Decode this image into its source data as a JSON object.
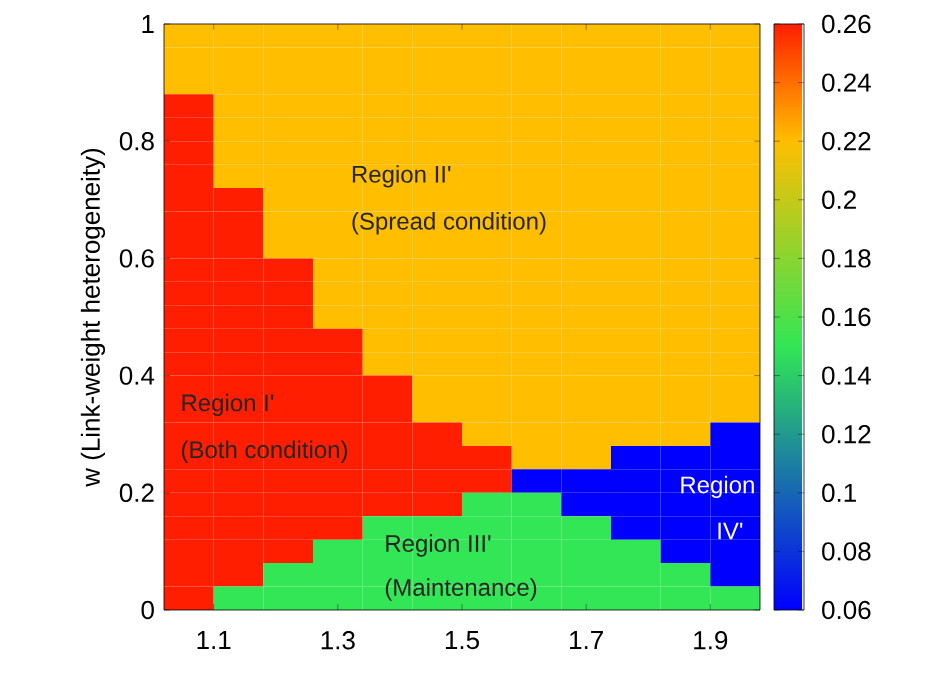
{
  "chart_data": {
    "type": "heatmap",
    "ylabel": "w (Link-weight heterogeneity)",
    "xlim": [
      1.02,
      1.98
    ],
    "ylim": [
      0,
      1
    ],
    "xticks": [
      1.1,
      1.3,
      1.5,
      1.7,
      1.9
    ],
    "yticks": [
      0,
      0.2,
      0.4,
      0.6,
      0.8,
      1
    ],
    "clim": [
      0.06,
      0.26
    ],
    "cticks": [
      0.06,
      0.08,
      0.1,
      0.12,
      0.14,
      0.16,
      0.18,
      0.2,
      0.22,
      0.24,
      0.26
    ],
    "cells": [
      [
        0.22,
        0.22,
        0.22,
        0.22,
        0.22,
        0.22,
        0.22,
        0.22,
        0.22,
        0.22,
        0.22,
        0.22
      ],
      [
        0.22,
        0.22,
        0.22,
        0.22,
        0.22,
        0.22,
        0.22,
        0.22,
        0.22,
        0.22,
        0.22,
        0.22
      ],
      [
        0.22,
        0.22,
        0.22,
        0.22,
        0.22,
        0.22,
        0.22,
        0.22,
        0.22,
        0.22,
        0.22,
        0.22
      ],
      [
        0.26,
        0.22,
        0.22,
        0.22,
        0.22,
        0.22,
        0.22,
        0.22,
        0.22,
        0.22,
        0.22,
        0.22
      ],
      [
        0.26,
        0.22,
        0.22,
        0.22,
        0.22,
        0.22,
        0.22,
        0.22,
        0.22,
        0.22,
        0.22,
        0.22
      ],
      [
        0.26,
        0.22,
        0.22,
        0.22,
        0.22,
        0.22,
        0.22,
        0.22,
        0.22,
        0.22,
        0.22,
        0.22
      ],
      [
        0.26,
        0.22,
        0.22,
        0.22,
        0.22,
        0.22,
        0.22,
        0.22,
        0.22,
        0.22,
        0.22,
        0.22
      ],
      [
        0.26,
        0.26,
        0.22,
        0.22,
        0.22,
        0.22,
        0.22,
        0.22,
        0.22,
        0.22,
        0.22,
        0.22
      ],
      [
        0.26,
        0.26,
        0.22,
        0.22,
        0.22,
        0.22,
        0.22,
        0.22,
        0.22,
        0.22,
        0.22,
        0.22
      ],
      [
        0.26,
        0.26,
        0.22,
        0.22,
        0.22,
        0.22,
        0.22,
        0.22,
        0.22,
        0.22,
        0.22,
        0.22
      ],
      [
        0.26,
        0.26,
        0.26,
        0.22,
        0.22,
        0.22,
        0.22,
        0.22,
        0.22,
        0.22,
        0.22,
        0.22
      ],
      [
        0.26,
        0.26,
        0.26,
        0.22,
        0.22,
        0.22,
        0.22,
        0.22,
        0.22,
        0.22,
        0.22,
        0.22
      ],
      [
        0.26,
        0.26,
        0.26,
        0.22,
        0.22,
        0.22,
        0.22,
        0.22,
        0.22,
        0.22,
        0.22,
        0.22
      ],
      [
        0.26,
        0.26,
        0.26,
        0.26,
        0.22,
        0.22,
        0.22,
        0.22,
        0.22,
        0.22,
        0.22,
        0.22
      ],
      [
        0.26,
        0.26,
        0.26,
        0.26,
        0.22,
        0.22,
        0.22,
        0.22,
        0.22,
        0.22,
        0.22,
        0.22
      ],
      [
        0.26,
        0.26,
        0.26,
        0.26,
        0.26,
        0.22,
        0.22,
        0.22,
        0.22,
        0.22,
        0.22,
        0.22
      ],
      [
        0.26,
        0.26,
        0.26,
        0.26,
        0.26,
        0.22,
        0.22,
        0.22,
        0.22,
        0.22,
        0.22,
        0.22
      ],
      [
        0.26,
        0.26,
        0.26,
        0.26,
        0.26,
        0.26,
        0.22,
        0.22,
        0.22,
        0.22,
        0.22,
        0.06
      ],
      [
        0.26,
        0.26,
        0.26,
        0.26,
        0.26,
        0.26,
        0.26,
        0.22,
        0.22,
        0.06,
        0.06,
        0.06
      ],
      [
        0.26,
        0.26,
        0.26,
        0.26,
        0.26,
        0.26,
        0.26,
        0.06,
        0.06,
        0.06,
        0.06,
        0.06
      ],
      [
        0.26,
        0.26,
        0.26,
        0.26,
        0.26,
        0.26,
        0.15,
        0.15,
        0.06,
        0.06,
        0.06,
        0.06
      ],
      [
        0.26,
        0.26,
        0.26,
        0.26,
        0.15,
        0.15,
        0.15,
        0.15,
        0.15,
        0.06,
        0.06,
        0.06
      ],
      [
        0.26,
        0.26,
        0.26,
        0.15,
        0.15,
        0.15,
        0.15,
        0.15,
        0.15,
        0.15,
        0.06,
        0.06
      ],
      [
        0.26,
        0.26,
        0.15,
        0.15,
        0.15,
        0.15,
        0.15,
        0.15,
        0.15,
        0.15,
        0.15,
        0.06
      ],
      [
        0.26,
        0.15,
        0.15,
        0.15,
        0.15,
        0.15,
        0.15,
        0.15,
        0.15,
        0.15,
        0.15,
        0.15
      ]
    ],
    "x": [
      1.06,
      1.14,
      1.22,
      1.3,
      1.38,
      1.46,
      1.54,
      1.62,
      1.7,
      1.78,
      1.86,
      1.94
    ],
    "annotations": [
      "Region II'",
      "(Spread condition)",
      "Region I'",
      "(Both condition)",
      "Region III'",
      "(Maintenance)",
      "Region",
      "IV'"
    ]
  }
}
